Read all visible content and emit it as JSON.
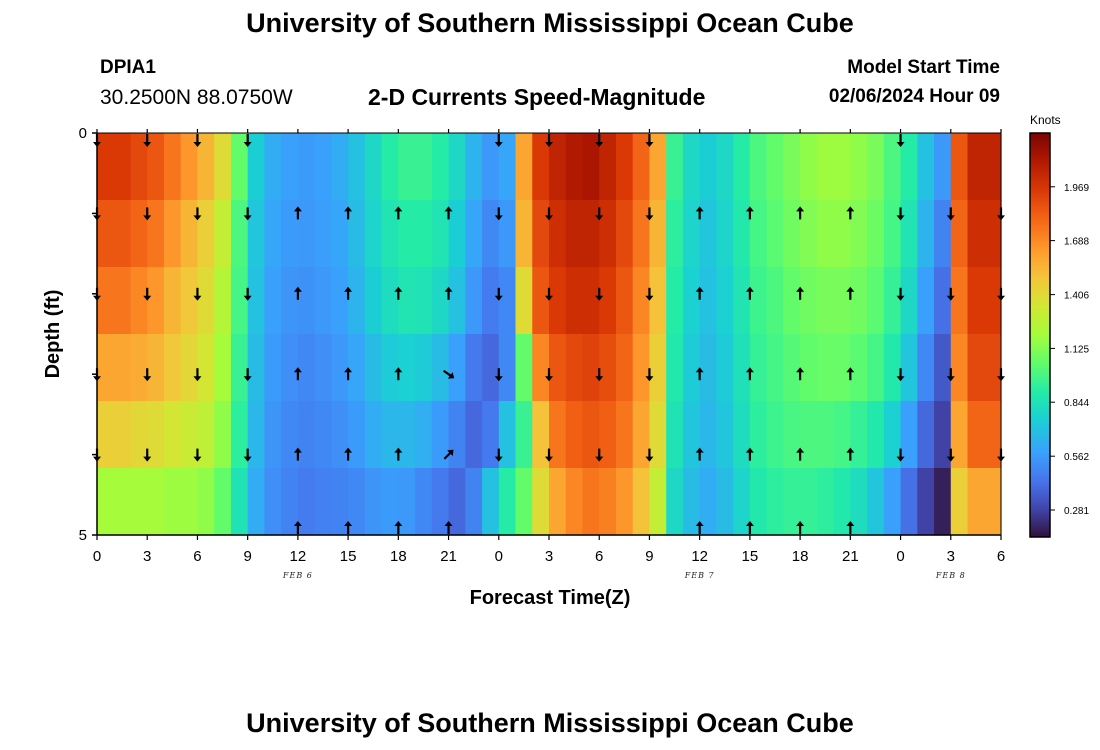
{
  "header": {
    "title": "University of Southern Mississippi Ocean Cube",
    "station_id": "DPIA1",
    "station_coords": "30.2500N  88.0750W",
    "subtitle": "2-D Currents Speed-Magnitude",
    "model_start_label": "Model Start Time",
    "model_start_value": "02/06/2024 Hour 09"
  },
  "footer": {
    "title": "University of Southern Mississippi Ocean Cube"
  },
  "chart_data": {
    "type": "heatmap",
    "title": "2-D Currents Speed-Magnitude",
    "xlabel": "Forecast Time(Z)",
    "ylabel": "Depth (ft)",
    "x_ticks": [
      "0",
      "3",
      "6",
      "9",
      "12",
      "15",
      "18",
      "21",
      "0",
      "3",
      "6",
      "9",
      "12",
      "15",
      "18",
      "21",
      "0",
      "3",
      "6"
    ],
    "date_labels": [
      {
        "label": "FEB 6",
        "hour_index": 12
      },
      {
        "label": "FEB 7",
        "hour_index": 36
      },
      {
        "label": "FEB 8",
        "hour_index": 51
      }
    ],
    "y_ticks": [
      "0",
      "5"
    ],
    "ylim": [
      0,
      5
    ],
    "hours": 54,
    "colorbar": {
      "units": "Knots",
      "min": 0.14,
      "max": 2.25,
      "ticks": [
        "1.969",
        "1.688",
        "1.406",
        "1.125",
        "0.844",
        "0.562",
        "0.281"
      ],
      "tick_values": [
        1.969,
        1.688,
        1.406,
        1.125,
        0.844,
        0.562,
        0.281
      ]
    },
    "speed_profile_by_depth": [
      {
        "depth_layer": 0,
        "knots": [
          1.95,
          1.95,
          1.9,
          1.85,
          1.75,
          1.65,
          1.55,
          1.4,
          1.05,
          0.75,
          0.62,
          0.58,
          0.56,
          0.58,
          0.62,
          0.7,
          0.8,
          0.9,
          0.95,
          0.95,
          0.9,
          0.8,
          0.65,
          0.55,
          0.6,
          1.6,
          1.95,
          2.05,
          2.1,
          2.12,
          2.05,
          1.95,
          1.8,
          1.6,
          0.95,
          0.8,
          0.75,
          0.8,
          0.9,
          1.0,
          1.05,
          1.1,
          1.15,
          1.18,
          1.18,
          1.15,
          1.1,
          1.0,
          0.9,
          0.7,
          0.55,
          1.85,
          2.05,
          2.05
        ]
      },
      {
        "depth_layer": 1,
        "knots": [
          1.85,
          1.85,
          1.8,
          1.75,
          1.65,
          1.55,
          1.45,
          1.3,
          1.0,
          0.72,
          0.6,
          0.56,
          0.55,
          0.57,
          0.6,
          0.68,
          0.78,
          0.86,
          0.9,
          0.9,
          0.86,
          0.75,
          0.6,
          0.5,
          0.55,
          1.55,
          1.9,
          2.0,
          2.05,
          2.05,
          2.0,
          1.9,
          1.75,
          1.55,
          0.92,
          0.78,
          0.72,
          0.78,
          0.88,
          0.98,
          1.03,
          1.08,
          1.12,
          1.15,
          1.15,
          1.12,
          1.07,
          0.98,
          0.86,
          0.65,
          0.48,
          1.8,
          2.0,
          2.0
        ]
      },
      {
        "depth_layer": 2,
        "knots": [
          1.75,
          1.75,
          1.7,
          1.65,
          1.55,
          1.48,
          1.4,
          1.25,
          0.98,
          0.7,
          0.58,
          0.54,
          0.53,
          0.55,
          0.58,
          0.65,
          0.75,
          0.82,
          0.86,
          0.85,
          0.8,
          0.7,
          0.55,
          0.46,
          0.5,
          1.4,
          1.85,
          1.95,
          2.0,
          2.0,
          1.95,
          1.85,
          1.7,
          1.5,
          0.9,
          0.76,
          0.7,
          0.76,
          0.86,
          0.96,
          1.0,
          1.05,
          1.08,
          1.1,
          1.1,
          1.08,
          1.03,
          0.94,
          0.8,
          0.58,
          0.42,
          1.75,
          1.95,
          1.95
        ]
      },
      {
        "depth_layer": 3,
        "knots": [
          1.6,
          1.6,
          1.58,
          1.55,
          1.48,
          1.42,
          1.35,
          1.2,
          0.95,
          0.68,
          0.56,
          0.52,
          0.5,
          0.52,
          0.55,
          0.6,
          0.68,
          0.74,
          0.76,
          0.74,
          0.68,
          0.58,
          0.45,
          0.4,
          0.5,
          1.05,
          1.7,
          1.85,
          1.9,
          1.92,
          1.88,
          1.8,
          1.65,
          1.45,
          0.88,
          0.74,
          0.68,
          0.74,
          0.84,
          0.94,
          0.98,
          1.02,
          1.05,
          1.06,
          1.06,
          1.03,
          0.98,
          0.88,
          0.72,
          0.5,
          0.35,
          1.7,
          1.9,
          1.9
        ]
      },
      {
        "depth_layer": 4,
        "knots": [
          1.45,
          1.45,
          1.42,
          1.4,
          1.35,
          1.32,
          1.28,
          1.15,
          0.92,
          0.66,
          0.54,
          0.5,
          0.48,
          0.5,
          0.52,
          0.56,
          0.62,
          0.66,
          0.66,
          0.63,
          0.56,
          0.48,
          0.4,
          0.45,
          0.7,
          0.95,
          1.5,
          1.75,
          1.82,
          1.85,
          1.82,
          1.75,
          1.6,
          1.4,
          0.85,
          0.72,
          0.66,
          0.72,
          0.82,
          0.92,
          0.96,
          0.99,
          1.0,
          1.0,
          0.98,
          0.94,
          0.88,
          0.76,
          0.58,
          0.4,
          0.28,
          1.6,
          1.8,
          1.8
        ]
      },
      {
        "depth_layer": 5,
        "knots": [
          1.2,
          1.2,
          1.2,
          1.2,
          1.18,
          1.18,
          1.15,
          1.05,
          0.85,
          0.62,
          0.52,
          0.48,
          0.46,
          0.47,
          0.48,
          0.5,
          0.54,
          0.56,
          0.55,
          0.5,
          0.45,
          0.4,
          0.48,
          0.7,
          0.9,
          1.05,
          1.4,
          1.6,
          1.7,
          1.75,
          1.72,
          1.65,
          1.5,
          1.3,
          0.8,
          0.68,
          0.62,
          0.68,
          0.78,
          0.88,
          0.92,
          0.94,
          0.94,
          0.92,
          0.88,
          0.82,
          0.72,
          0.58,
          0.42,
          0.28,
          0.18,
          1.45,
          1.6,
          1.6
        ]
      }
    ],
    "direction_arrows": {
      "columns_hour": [
        0,
        3,
        6,
        9,
        12,
        15,
        18,
        21,
        24,
        27,
        30,
        33,
        36,
        39,
        42,
        45,
        48,
        51,
        54
      ],
      "rows": [
        {
          "depth_level": 0,
          "dirs": [
            "down",
            "down",
            "down",
            "down",
            "none",
            "none",
            "none",
            "none",
            "down",
            "down",
            "down",
            "down",
            "none",
            "none",
            "none",
            "none",
            "down",
            "none",
            "none"
          ]
        },
        {
          "depth_level": 1,
          "dirs": [
            "down",
            "down",
            "down",
            "down",
            "up",
            "up",
            "up",
            "up",
            "down",
            "down",
            "down",
            "down",
            "up",
            "up",
            "up",
            "up",
            "down",
            "down",
            "down"
          ]
        },
        {
          "depth_level": 2,
          "dirs": [
            "down",
            "down",
            "down",
            "down",
            "up",
            "up",
            "up",
            "up",
            "down",
            "down",
            "down",
            "down",
            "up",
            "up",
            "up",
            "up",
            "down",
            "down",
            "down"
          ]
        },
        {
          "depth_level": 3,
          "dirs": [
            "down",
            "down",
            "down",
            "down",
            "up",
            "up",
            "up",
            "down-right",
            "down",
            "down",
            "down",
            "down",
            "up",
            "up",
            "up",
            "up",
            "down",
            "down",
            "down"
          ]
        },
        {
          "depth_level": 4,
          "dirs": [
            "down",
            "down",
            "down",
            "down",
            "up",
            "up",
            "up",
            "up-right",
            "down",
            "down",
            "down",
            "down",
            "up",
            "up",
            "up",
            "up",
            "down",
            "down",
            "down"
          ]
        },
        {
          "depth_level": 5,
          "dirs": [
            "none",
            "none",
            "none",
            "none",
            "up",
            "up",
            "up",
            "up",
            "none",
            "none",
            "none",
            "none",
            "up",
            "up",
            "up",
            "up",
            "none",
            "none",
            "none"
          ]
        }
      ]
    }
  }
}
